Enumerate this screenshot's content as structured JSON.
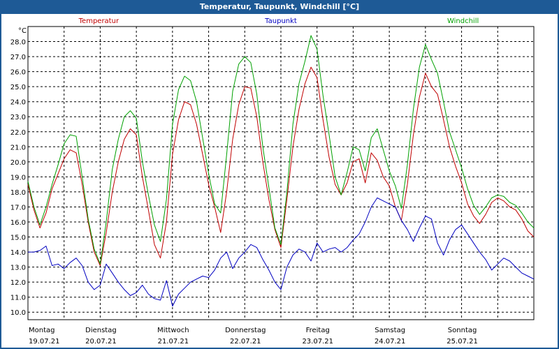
{
  "window": {
    "title": "Temperatur, Taupunkt, Windchill [°C]"
  },
  "chart_data": {
    "type": "line",
    "title": "Temperatur, Taupunkt, Windchill [°C]",
    "ylabel": "°C",
    "ylim": [
      9.5,
      29
    ],
    "grid": true,
    "y_ticks": [
      "10.0",
      "11.0",
      "12.0",
      "13.0",
      "14.0",
      "15.0",
      "16.0",
      "17.0",
      "18.0",
      "19.0",
      "20.0",
      "21.0",
      "22.0",
      "23.0",
      "24.0",
      "25.0",
      "26.0",
      "27.0",
      "28.0"
    ],
    "x_range_hours": [
      0,
      168
    ],
    "days": [
      {
        "name": "Montag",
        "date": "19.07.21"
      },
      {
        "name": "Dienstag",
        "date": "20.07.21"
      },
      {
        "name": "Mittwoch",
        "date": "21.07.21"
      },
      {
        "name": "Donnerstag",
        "date": "22.07.21"
      },
      {
        "name": "Freitag",
        "date": "23.07.21"
      },
      {
        "name": "Samstag",
        "date": "24.07.21"
      },
      {
        "name": "Sonntag",
        "date": "25.07.21"
      }
    ],
    "series": [
      {
        "name": "Temperatur",
        "color": "#c00000",
        "x": [
          0,
          2,
          4,
          6,
          8,
          10,
          12,
          14,
          16,
          18,
          20,
          22,
          24,
          26,
          28,
          30,
          32,
          34,
          36,
          38,
          40,
          42,
          44,
          46,
          48,
          50,
          52,
          54,
          56,
          58,
          60,
          62,
          64,
          66,
          68,
          70,
          72,
          74,
          76,
          78,
          80,
          82,
          84,
          86,
          88,
          90,
          92,
          94,
          96,
          98,
          100,
          102,
          104,
          106,
          108,
          110,
          112,
          114,
          116,
          118,
          120,
          122,
          124,
          126,
          128,
          130,
          132,
          134,
          136,
          138,
          140,
          142,
          144,
          146,
          148,
          150,
          152,
          154,
          156,
          158,
          160,
          162,
          164,
          166,
          168
        ],
        "values": [
          18.5,
          16.8,
          15.6,
          16.6,
          18.2,
          19.2,
          20.2,
          20.8,
          20.6,
          18.5,
          16.0,
          14.0,
          13.1,
          15.3,
          18.0,
          20.0,
          21.5,
          22.2,
          21.8,
          19.0,
          16.8,
          14.5,
          13.6,
          16.0,
          20.5,
          22.8,
          24.0,
          23.8,
          22.5,
          20.5,
          18.5,
          17.0,
          15.3,
          18.0,
          21.5,
          23.8,
          25.0,
          24.9,
          23.0,
          20.0,
          17.5,
          15.5,
          14.3,
          17.5,
          21.0,
          23.5,
          25.2,
          26.3,
          25.6,
          22.8,
          20.3,
          18.5,
          17.8,
          18.6,
          20.0,
          20.2,
          18.6,
          20.6,
          20.1,
          19.0,
          18.4,
          17.0,
          16.1,
          18.5,
          21.8,
          24.3,
          25.9,
          25.0,
          24.5,
          22.8,
          21.0,
          19.7,
          18.6,
          17.2,
          16.4,
          15.9,
          16.5,
          17.3,
          17.6,
          17.4,
          17.0,
          16.8,
          16.2,
          15.4,
          15.0
        ]
      },
      {
        "name": "Taupunkt",
        "color": "#0000c0",
        "x": [
          0,
          2,
          4,
          6,
          8,
          10,
          12,
          14,
          16,
          18,
          20,
          22,
          24,
          26,
          28,
          30,
          32,
          34,
          36,
          38,
          40,
          42,
          44,
          46,
          48,
          50,
          52,
          54,
          56,
          58,
          60,
          62,
          64,
          66,
          68,
          70,
          72,
          74,
          76,
          78,
          80,
          82,
          84,
          86,
          88,
          90,
          92,
          94,
          96,
          98,
          100,
          102,
          104,
          106,
          108,
          110,
          112,
          114,
          116,
          118,
          120,
          122,
          124,
          126,
          128,
          130,
          132,
          134,
          136,
          138,
          140,
          142,
          144,
          146,
          148,
          150,
          152,
          154,
          156,
          158,
          160,
          162,
          164,
          166,
          168
        ],
        "values": [
          14.0,
          14.0,
          14.1,
          14.4,
          13.1,
          13.2,
          12.9,
          13.3,
          13.6,
          13.1,
          12.0,
          11.5,
          11.8,
          13.2,
          12.6,
          12.0,
          11.5,
          11.1,
          11.3,
          11.8,
          11.2,
          10.9,
          10.8,
          12.1,
          10.4,
          11.2,
          11.6,
          12.0,
          12.2,
          12.4,
          12.3,
          12.8,
          13.6,
          14.0,
          12.9,
          13.6,
          14.0,
          14.5,
          14.3,
          13.5,
          12.8,
          12.0,
          11.5,
          13.0,
          13.8,
          14.2,
          14.0,
          13.4,
          14.6,
          14.0,
          14.2,
          14.3,
          14.0,
          14.3,
          14.8,
          15.2,
          16.0,
          17.0,
          17.6,
          17.4,
          17.2,
          17.0,
          16.1,
          15.5,
          14.7,
          15.6,
          16.4,
          16.2,
          14.6,
          13.8,
          14.8,
          15.5,
          15.8,
          15.2,
          14.6,
          14.0,
          13.5,
          12.8,
          13.2,
          13.6,
          13.4,
          13.0,
          12.6,
          12.4,
          12.2
        ]
      },
      {
        "name": "Windchill",
        "color": "#00a000",
        "x": [
          0,
          2,
          4,
          6,
          8,
          10,
          12,
          14,
          16,
          18,
          20,
          22,
          24,
          26,
          28,
          30,
          32,
          34,
          36,
          38,
          40,
          42,
          44,
          46,
          48,
          50,
          52,
          54,
          56,
          58,
          60,
          62,
          64,
          66,
          68,
          70,
          72,
          74,
          76,
          78,
          80,
          82,
          84,
          86,
          88,
          90,
          92,
          94,
          96,
          98,
          100,
          102,
          104,
          106,
          108,
          110,
          112,
          114,
          116,
          118,
          120,
          122,
          124,
          126,
          128,
          130,
          132,
          134,
          136,
          138,
          140,
          142,
          144,
          146,
          148,
          150,
          152,
          154,
          156,
          158,
          160,
          162,
          164,
          166,
          168
        ],
        "values": [
          18.7,
          17.0,
          15.8,
          17.0,
          18.5,
          19.8,
          21.2,
          21.8,
          21.7,
          19.0,
          16.2,
          14.2,
          13.2,
          16.0,
          19.5,
          21.5,
          23.0,
          23.4,
          22.9,
          20.0,
          17.8,
          15.8,
          14.7,
          17.5,
          22.5,
          24.8,
          25.7,
          25.4,
          24.0,
          21.6,
          19.2,
          17.2,
          16.6,
          20.5,
          24.7,
          26.5,
          27.0,
          26.6,
          24.5,
          21.0,
          18.3,
          15.6,
          14.5,
          18.0,
          22.5,
          25.2,
          26.7,
          28.4,
          27.5,
          24.4,
          21.8,
          19.0,
          17.8,
          19.3,
          21.0,
          20.8,
          19.4,
          21.6,
          22.2,
          20.8,
          19.4,
          18.4,
          16.9,
          19.8,
          23.5,
          26.3,
          27.8,
          26.8,
          25.9,
          24.0,
          22.0,
          20.8,
          19.6,
          18.2,
          17.1,
          16.5,
          17.0,
          17.6,
          17.8,
          17.7,
          17.3,
          17.1,
          16.6,
          16.0,
          15.6
        ]
      }
    ]
  }
}
